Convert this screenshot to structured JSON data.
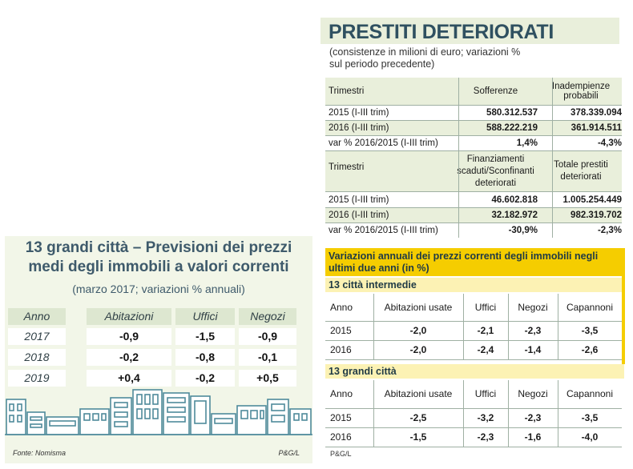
{
  "left_panel": {
    "title_line1": "13 grandi città – Previsioni dei prezzi",
    "title_line2": "medi degli immobili a valori correnti",
    "subtitle": "(marzo 2017; variazioni % annuali)",
    "headers": [
      "Anno",
      "Abitazioni",
      "Uffici",
      "Negozi"
    ],
    "rows": [
      {
        "anno": "2017",
        "abitazioni": "-0,9",
        "uffici": "-1,5",
        "negozi": "-0,9"
      },
      {
        "anno": "2018",
        "abitazioni": "-0,2",
        "uffici": "-0,8",
        "negozi": "-0,1"
      },
      {
        "anno": "2019",
        "abitazioni": "+0,4",
        "uffici": "-0,2",
        "negozi": "+0,5"
      }
    ],
    "source": "Fonte: Nomisma",
    "credit": "P&G/L",
    "skyline_color": "#4f8a9b"
  },
  "right_top": {
    "title": "PRESTITI DETERIORATI",
    "subtitle_line1": "(consistenze in milioni di euro; variazioni %",
    "subtitle_line2": "sul periodo precedente)",
    "block1": {
      "headers": [
        "Trimestri",
        "Sofferenze",
        "Inadempienze probabili"
      ],
      "rows": [
        [
          "2015 (I-III trim)",
          "580.312.537",
          "378.339.094"
        ],
        [
          "2016 (I-III trim)",
          "588.222.219",
          "361.914.511"
        ],
        [
          "var % 2016/2015 (I-III trim)",
          "1,4%",
          "-4,3%"
        ]
      ]
    },
    "block2": {
      "headers": [
        "Trimestri",
        "Finanziamenti scaduti/Sconfinanti deteriorati",
        "Totale prestiti deteriorati"
      ],
      "rows": [
        [
          "2015 (I-III trim)",
          "46.602.818",
          "1.005.254.449"
        ],
        [
          "2016 (I-III trim)",
          "32.182.972",
          "982.319.702"
        ],
        [
          "var % 2016/2015 (I-III trim)",
          "-30,9%",
          "-2,3%"
        ]
      ]
    }
  },
  "right_bottom": {
    "title": "Variazioni annuali dei prezzi correnti degli immobili negli ultimi due anni (in %)",
    "headers": [
      "Anno",
      "Abitazioni usate",
      "Uffici",
      "Negozi",
      "Capannoni"
    ],
    "sections": [
      {
        "label": "13 città intermedie",
        "rows": [
          [
            "2015",
            "-2,0",
            "-2,1",
            "-2,3",
            "-3,5"
          ],
          [
            "2016",
            "-2,0",
            "-2,4",
            "-1,4",
            "-2,6"
          ]
        ]
      },
      {
        "label": "13 grandi città",
        "rows": [
          [
            "2015",
            "-2,5",
            "-3,2",
            "-2,3",
            "-3,5"
          ],
          [
            "2016",
            "-1,5",
            "-2,3",
            "-1,6",
            "-4,0"
          ]
        ]
      }
    ],
    "credit": "P&G/L",
    "accent": "#f5cd00"
  }
}
